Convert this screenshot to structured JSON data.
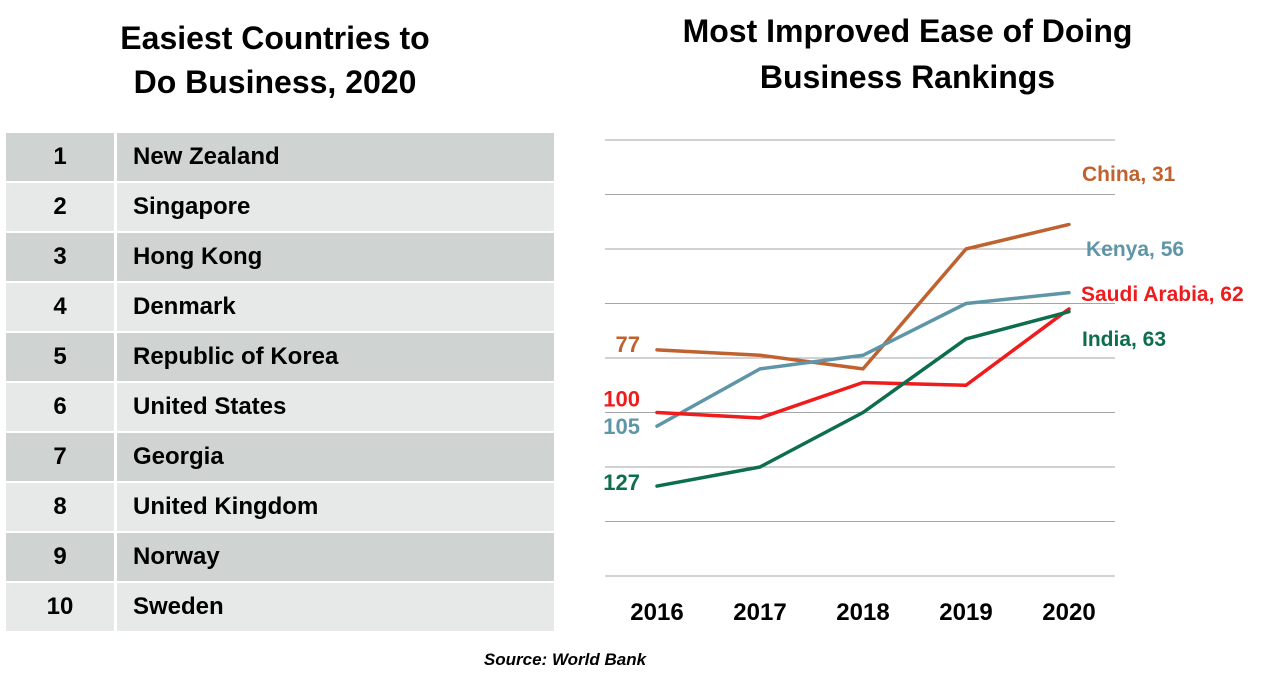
{
  "left_title": [
    "Easiest Countries to",
    "Do Business, 2020"
  ],
  "table": {
    "rows": [
      {
        "rank": "1",
        "country": "New Zealand"
      },
      {
        "rank": "2",
        "country": "Singapore"
      },
      {
        "rank": "3",
        "country": "Hong Kong"
      },
      {
        "rank": "4",
        "country": "Denmark"
      },
      {
        "rank": "5",
        "country": "Republic of Korea"
      },
      {
        "rank": "6",
        "country": "United States"
      },
      {
        "rank": "7",
        "country": "Georgia"
      },
      {
        "rank": "8",
        "country": "United Kingdom"
      },
      {
        "rank": "9",
        "country": "Norway"
      },
      {
        "rank": "10",
        "country": "Sweden"
      }
    ],
    "colors": {
      "odd": "#cfd4d2",
      "even": "#e6e9e8"
    }
  },
  "source": "Source: World Bank",
  "chart_data": {
    "type": "line",
    "title": [
      "Most Improved Ease of Doing",
      "Business Rankings"
    ],
    "x": [
      "2016",
      "2017",
      "2018",
      "2019",
      "2020"
    ],
    "ylim": [
      0,
      160
    ],
    "y_inverted": true,
    "grid": true,
    "series": [
      {
        "name": "China",
        "color": "#c0622f",
        "values": [
          77,
          79,
          84,
          40,
          31
        ],
        "start_label": "77",
        "end_label": "China, 31"
      },
      {
        "name": "Kenya",
        "color": "#5e96a8",
        "values": [
          105,
          84,
          79,
          60,
          56
        ],
        "start_label": "105",
        "end_label": "Kenya, 56"
      },
      {
        "name": "Saudi Arabia",
        "color": "#ee1c1c",
        "values": [
          100,
          102,
          89,
          90,
          62
        ],
        "start_label": "100",
        "end_label": "Saudi Arabia, 62"
      },
      {
        "name": "India",
        "color": "#0d6e4e",
        "values": [
          127,
          120,
          100,
          73,
          63
        ],
        "start_label": "127",
        "end_label": "India, 63"
      }
    ]
  }
}
